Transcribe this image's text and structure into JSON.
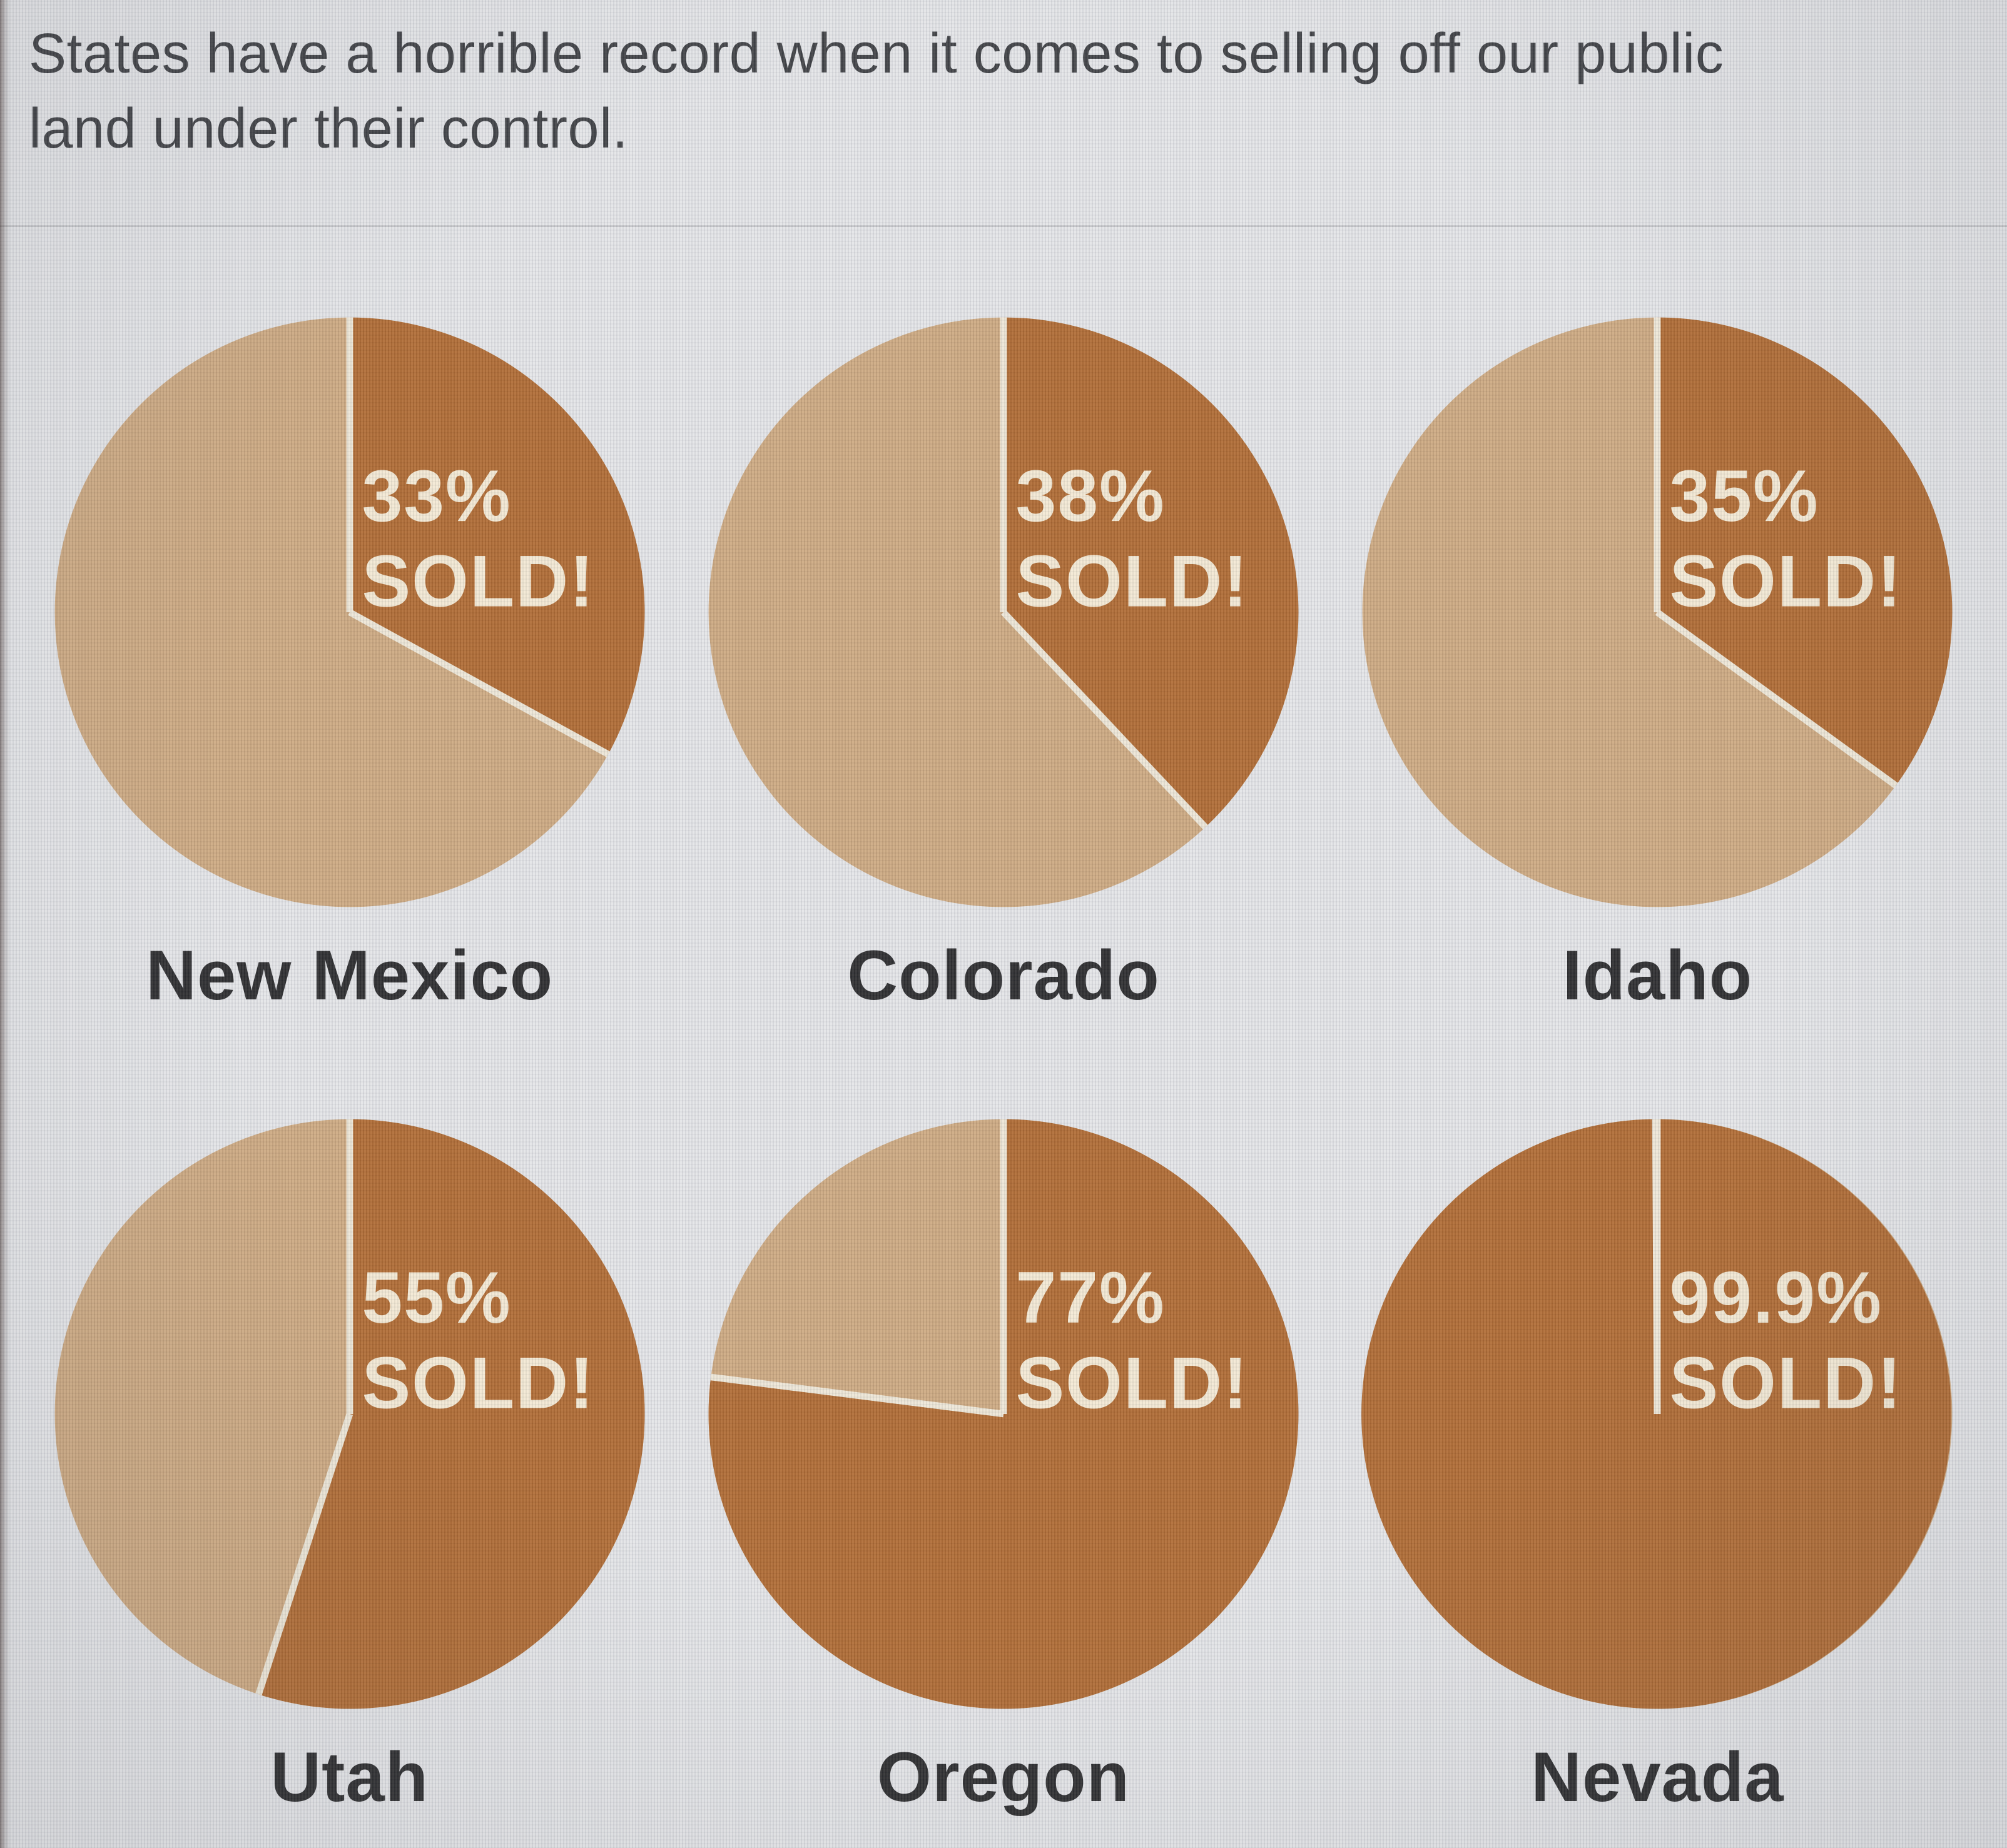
{
  "header": {
    "title_lines": [
      "States have a horrible record when it comes to selling off our public",
      "land under their control."
    ]
  },
  "chart_data": {
    "type": "pie",
    "title": "States have a horrible record when it comes to selling off our public land under their control.",
    "legend": "none",
    "start_angle_deg": 0,
    "direction": "clockwise",
    "colors": {
      "sold": "#aa6024",
      "remaining": "#c9a277",
      "separator": "#ece5d4",
      "value_text": "#f2e7d1",
      "state_label": "#1d1d1f"
    },
    "charts": [
      {
        "state": "New Mexico",
        "sold_percent": 33,
        "value_label": "33%",
        "sold_label": "SOLD!"
      },
      {
        "state": "Colorado",
        "sold_percent": 38,
        "value_label": "38%",
        "sold_label": "SOLD!"
      },
      {
        "state": "Idaho",
        "sold_percent": 35,
        "value_label": "35%",
        "sold_label": "SOLD!"
      },
      {
        "state": "Utah",
        "sold_percent": 55,
        "value_label": "55%",
        "sold_label": "SOLD!"
      },
      {
        "state": "Oregon",
        "sold_percent": 77,
        "value_label": "77%",
        "sold_label": "SOLD!"
      },
      {
        "state": "Nevada",
        "sold_percent": 99.9,
        "value_label": "99.9%",
        "sold_label": "SOLD!"
      }
    ]
  }
}
